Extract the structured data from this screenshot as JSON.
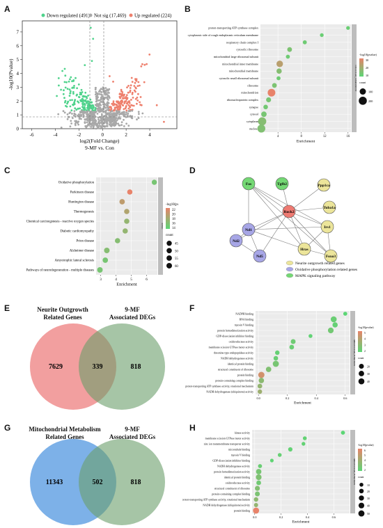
{
  "panel_letters": [
    "A",
    "B",
    "C",
    "D",
    "E",
    "F",
    "G",
    "H"
  ],
  "legend_colors": {
    "low": "#5cd675",
    "high": "#e8836a",
    "down": "#4fd38c",
    "notsig": "#a8a8a8",
    "up": "#ee7f6c"
  },
  "volcano": {
    "legend": [
      "Down regulated (491)",
      "Not sig (17,469)",
      "Up regulated (224)"
    ],
    "xlabel": "log2(Fold Change)",
    "ylabel": "-log10(Pvalue)",
    "title": "9-MF vs. Con",
    "xticks": [
      "-6",
      "-4",
      "-2",
      "0",
      "2",
      "4"
    ],
    "yticks": [
      "0",
      "1",
      "2",
      "3",
      "4",
      "5",
      "6",
      "7"
    ]
  },
  "panel_b": {
    "side_label": "CELLULAR_COMPONENT",
    "xlabel": "Enrichment",
    "xticks": [
      "4",
      "8",
      "12",
      "16"
    ],
    "legend_title": "-log10(pvalue)",
    "color_ticks": [
      "30",
      "20",
      "10"
    ],
    "size_title": "count",
    "size_ticks": [
      "100",
      "200"
    ]
  },
  "panel_c": {
    "side_label": "KEGG",
    "xlabel": "Enrichment",
    "xticks": [
      "3",
      "4",
      "5",
      "6"
    ],
    "legend_title": "-log10(pvalue)",
    "color_ticks": [
      "22",
      "20",
      "18",
      "16",
      "14"
    ],
    "size_title": "count",
    "size_ticks": [
      "45",
      "50",
      "55",
      "60"
    ]
  },
  "network": {
    "nodes": [
      "Fos",
      "Tgfb2",
      "Ppp1ca",
      "Tuba1a",
      "Rock2",
      "Nd1",
      "Nd2",
      "Nd5",
      "Irs1",
      "Hras",
      "Foxo3"
    ],
    "legend": [
      "Neurite outgrowth related genes",
      "Oxidative phosphorylation related genes",
      "MAPK signaling pathway"
    ]
  },
  "venn_e": {
    "left_title": "Neurite Outgrowth\nRelated Genes",
    "right_title": "9-MF\nAssociated DEGs",
    "left_only": "7629",
    "overlap": "339",
    "right_only": "818"
  },
  "panel_f": {
    "side_label": "MOLECULAR_FUNCTION",
    "xlabel": "Enrichment",
    "xticks": [
      "0.0",
      "0.2",
      "0.4",
      "0.6"
    ],
    "legend_title": "-log10(pvalue)",
    "color_ticks": [
      "5",
      "4",
      "3",
      "2"
    ],
    "size_title": "count",
    "size_ticks": [
      "20",
      "30",
      "40"
    ]
  },
  "venn_g": {
    "left_title": "Mitochondrial Metabolism\nRelated Genes",
    "right_title": "9-MF\nAssociated DEGs",
    "left_only": "11343",
    "overlap": "502",
    "right_only": "818"
  },
  "panel_h": {
    "side_label": "MOLECULAR_FUNCTION",
    "xlabel": "Enrichment",
    "xticks": [
      "0.0",
      "0.2",
      "0.4",
      "0.6"
    ],
    "legend_title": "-log10(pvalue)",
    "color_ticks": [
      "6",
      "5",
      "4",
      "3",
      "2"
    ],
    "size_title": "count",
    "size_ticks": [
      "10",
      "20",
      "30",
      "40",
      "50"
    ]
  },
  "chart_data": [
    {
      "type": "scatter",
      "panel": "B",
      "title": "",
      "xlabel": "Enrichment",
      "ylabel": "",
      "xlim": [
        1,
        16.5
      ],
      "categories": [
        "proton-transporting ATP synthase complex",
        "cytoplasmic side of rough endoplasmic reticulum membrane",
        "respiratory chain complex I",
        "cytosolic ribosome",
        "mitochondrial large ribosomal subunit",
        "mitochondrial inner membrane",
        "mitochondrial membrane",
        "cytosolic small ribosomal subunit",
        "ribosome",
        "mitochondrion",
        "ribonucleoprotein complex",
        "synapse",
        "cytosol",
        "cytoplasm",
        "nucleus"
      ],
      "x": [
        16,
        11.5,
        8.6,
        6.0,
        5.7,
        4.3,
        4.2,
        4.1,
        3.4,
        2.9,
        2.4,
        1.9,
        1.6,
        1.3,
        1.15
      ],
      "color": [
        8,
        8,
        9,
        12,
        9,
        25,
        14,
        9,
        12,
        35,
        11,
        10,
        11,
        14,
        13
      ],
      "size": [
        15,
        15,
        20,
        40,
        20,
        110,
        55,
        20,
        40,
        175,
        50,
        35,
        65,
        210,
        190
      ]
    },
    {
      "type": "scatter",
      "panel": "C",
      "title": "",
      "xlabel": "Enrichment",
      "ylabel": "",
      "xlim": [
        2.7,
        6.7
      ],
      "categories": [
        "Oxidative phosphorylation",
        "Parkinson disease",
        "Huntington disease",
        "Thermogenesis",
        "Chemical carcinogenesis - reactive oxygen species",
        "Diabetic cardiomyopathy",
        "Prion disease",
        "Alzheimer disease",
        "Amyotrophic lateral sclerosis",
        "Pathways of neurodegeneration - multiple diseases"
      ],
      "x": [
        6.5,
        4.9,
        4.4,
        4.7,
        4.7,
        4.6,
        4.1,
        3.4,
        3.3,
        2.95
      ],
      "color": [
        14,
        22,
        19,
        18,
        16,
        16,
        15,
        15,
        14,
        14
      ],
      "size": [
        42,
        50,
        52,
        50,
        47,
        46,
        46,
        58,
        56,
        60
      ]
    },
    {
      "type": "scatter",
      "panel": "F",
      "title": "",
      "xlabel": "Enrichment",
      "ylabel": "",
      "xlim": [
        -0.02,
        0.63
      ],
      "categories": [
        "NADPH binding",
        "RNA binding",
        "myosin V binding",
        "protein homodimerization activity",
        "GDP-dissociation inhibitor binding",
        "oxidoreductase activity",
        "membrane scission GTPase motor activity",
        "threonine-type endopeptidase activity",
        "NADH dehydrogenase activity",
        "identical protein binding",
        "structural constituent of ribosome",
        "protein binding",
        "protein-containing complex binding",
        "proton-transporting ATP synthase activity, rotational mechanism",
        "NADH dehydrogenase (ubiquinone) activity"
      ],
      "x": [
        0.6,
        0.52,
        0.53,
        0.5,
        0.36,
        0.24,
        0.23,
        0.13,
        0.12,
        0.12,
        0.07,
        0.02,
        0.02,
        0.01,
        0.01
      ],
      "color": [
        2,
        2.3,
        2.2,
        2.5,
        2.1,
        2.4,
        2.3,
        2.2,
        2.3,
        2.6,
        2.8,
        4.5,
        3,
        3.2,
        3.4
      ],
      "size": [
        10,
        38,
        26,
        34,
        8,
        20,
        18,
        14,
        16,
        42,
        28,
        45,
        30,
        18,
        14
      ]
    },
    {
      "type": "scatter",
      "panel": "H",
      "title": "",
      "xlabel": "Enrichment",
      "ylabel": "",
      "xlim": [
        -0.02,
        0.72
      ],
      "categories": [
        "kinase activity",
        "membrane scission GTPase motor activity",
        "zinc ion transmembrane transporter activity",
        "microtubule binding",
        "myosin V binding",
        "GDP-dissociation inhibitor binding",
        "NADH dehydrogenase activity",
        "protein homodimerization activity",
        "identical protein binding",
        "oxidoreductase activity",
        "structural constituent of ribosome",
        "protein-containing complex binding",
        "proton-transporting ATP synthase activity, rotational mechanism",
        "NADH dehydrogenase (ubiquinone) activity",
        "protein binding"
      ],
      "x": [
        0.67,
        0.38,
        0.37,
        0.27,
        0.19,
        0.13,
        0.04,
        0.03,
        0.03,
        0.03,
        0.02,
        0.02,
        0.01,
        0.01,
        0.01
      ],
      "color": [
        2,
        2.2,
        2.2,
        2.2,
        2.3,
        2.1,
        2.4,
        2.8,
        3,
        2.6,
        3.1,
        2.9,
        3.4,
        3.6,
        6
      ],
      "size": [
        12,
        10,
        9,
        16,
        10,
        7,
        12,
        36,
        42,
        22,
        28,
        24,
        18,
        14,
        52
      ]
    }
  ]
}
